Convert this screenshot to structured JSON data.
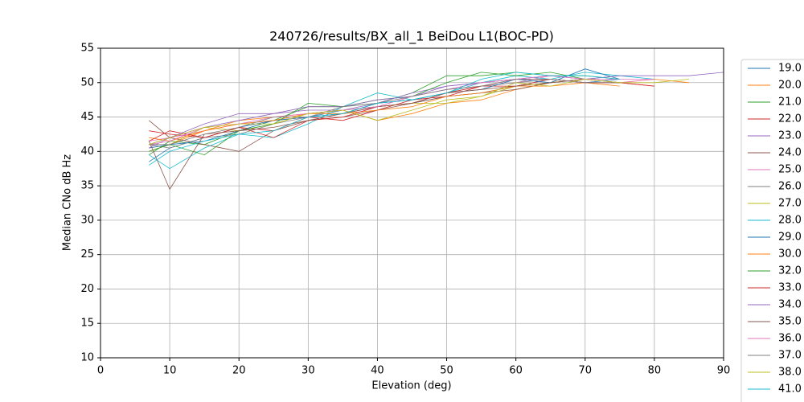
{
  "chart_data": {
    "type": "line",
    "title": "240726/results/BX_all_1 BeiDou L1(BOC-PD)",
    "xlabel": "Elevation (deg)",
    "ylabel": "Median CNo dB Hz",
    "xlim": [
      0,
      90
    ],
    "ylim": [
      10,
      55
    ],
    "xticks": [
      0,
      10,
      20,
      30,
      40,
      50,
      60,
      70,
      80,
      90
    ],
    "yticks": [
      10,
      15,
      20,
      25,
      30,
      35,
      40,
      45,
      50,
      55
    ],
    "grid": true,
    "legend": "outside right",
    "x": [
      7,
      10,
      15,
      20,
      25,
      30,
      35,
      40,
      45,
      50,
      55,
      60,
      65,
      70,
      75,
      80,
      85,
      90
    ],
    "series": [
      {
        "name": "19.0",
        "color": "#1f77b4",
        "values": [
          38.5,
          40.5,
          42.0,
          43.5,
          44.5,
          45.0,
          46.0,
          46.5,
          47.0,
          48.0,
          48.5,
          49.5,
          50.5,
          50.0,
          50.5,
          null,
          null,
          null
        ]
      },
      {
        "name": "20.0",
        "color": "#ff7f0e",
        "values": [
          40.0,
          41.0,
          43.0,
          44.5,
          45.0,
          45.5,
          46.0,
          44.5,
          45.5,
          47.0,
          47.5,
          49.0,
          50.0,
          50.5,
          50.0,
          50.5,
          50.0,
          null
        ]
      },
      {
        "name": "21.0",
        "color": "#2ca02c",
        "values": [
          39.5,
          41.5,
          41.0,
          43.0,
          44.5,
          46.5,
          46.5,
          47.0,
          48.5,
          51.0,
          51.0,
          51.5,
          51.0,
          51.0,
          50.5,
          null,
          null,
          null
        ]
      },
      {
        "name": "22.0",
        "color": "#d62728",
        "values": [
          43.0,
          42.5,
          42.0,
          43.5,
          43.0,
          45.0,
          44.5,
          46.0,
          47.5,
          48.0,
          49.5,
          49.5,
          50.5,
          50.0,
          50.0,
          49.5,
          null,
          null
        ]
      },
      {
        "name": "23.0",
        "color": "#9467bd",
        "values": [
          41.0,
          42.0,
          43.5,
          44.5,
          45.5,
          46.0,
          46.0,
          47.0,
          48.5,
          49.5,
          50.0,
          50.5,
          51.0,
          50.5,
          51.0,
          null,
          null,
          null
        ]
      },
      {
        "name": "24.0",
        "color": "#8c564b",
        "values": [
          44.5,
          42.0,
          41.0,
          40.0,
          43.0,
          44.5,
          45.0,
          46.0,
          47.0,
          48.0,
          48.5,
          49.0,
          50.0,
          50.5,
          50.0,
          null,
          null,
          null
        ]
      },
      {
        "name": "25.0",
        "color": "#e377c2",
        "values": [
          41.5,
          42.0,
          43.0,
          44.0,
          44.5,
          45.0,
          45.5,
          46.5,
          48.0,
          49.0,
          49.5,
          50.0,
          51.0,
          50.5,
          50.0,
          50.5,
          null,
          null
        ]
      },
      {
        "name": "26.0",
        "color": "#7f7f7f",
        "values": [
          41.0,
          40.5,
          42.0,
          42.5,
          44.0,
          45.0,
          45.5,
          47.0,
          47.5,
          48.5,
          49.5,
          50.0,
          50.5,
          50.0,
          null,
          null,
          null,
          null
        ]
      },
      {
        "name": "27.0",
        "color": "#bcbd22",
        "values": [
          40.0,
          41.0,
          43.5,
          43.0,
          44.0,
          45.5,
          46.0,
          46.5,
          47.0,
          47.0,
          48.0,
          49.5,
          50.0,
          50.5,
          50.0,
          null,
          null,
          null
        ]
      },
      {
        "name": "28.0",
        "color": "#17becf",
        "values": [
          39.5,
          37.5,
          40.5,
          42.5,
          42.0,
          44.0,
          46.5,
          48.5,
          47.5,
          48.5,
          50.0,
          51.0,
          50.5,
          51.5,
          51.0,
          50.5,
          null,
          null
        ]
      },
      {
        "name": "29.0",
        "color": "#1f77b4",
        "values": [
          40.5,
          41.0,
          41.5,
          43.0,
          44.5,
          45.0,
          45.5,
          47.0,
          47.5,
          48.5,
          49.0,
          50.5,
          50.0,
          52.0,
          50.5,
          null,
          null,
          null
        ]
      },
      {
        "name": "30.0",
        "color": "#ff7f0e",
        "values": [
          42.0,
          41.5,
          43.0,
          44.0,
          44.5,
          45.5,
          45.5,
          46.0,
          46.5,
          48.0,
          48.5,
          49.5,
          49.5,
          50.0,
          49.5,
          null,
          null,
          null
        ]
      },
      {
        "name": "32.0",
        "color": "#2ca02c",
        "values": [
          40.0,
          41.0,
          39.5,
          43.0,
          44.0,
          47.0,
          46.5,
          47.5,
          48.0,
          50.0,
          51.5,
          51.0,
          51.5,
          50.5,
          null,
          null,
          null,
          null
        ]
      },
      {
        "name": "33.0",
        "color": "#d62728",
        "values": [
          41.5,
          43.0,
          42.0,
          43.5,
          42.0,
          44.5,
          45.0,
          46.5,
          47.0,
          48.5,
          49.5,
          50.5,
          50.5,
          50.0,
          50.0,
          49.5,
          null,
          null
        ]
      },
      {
        "name": "34.0",
        "color": "#9467bd",
        "values": [
          40.5,
          42.0,
          44.0,
          45.5,
          45.5,
          46.5,
          46.5,
          47.5,
          48.0,
          49.5,
          50.0,
          50.5,
          51.0,
          50.5,
          51.0,
          51.0,
          51.0,
          51.5
        ]
      },
      {
        "name": "35.0",
        "color": "#8c564b",
        "values": [
          41.5,
          34.5,
          42.5,
          43.0,
          43.5,
          44.5,
          45.5,
          46.5,
          47.0,
          48.5,
          49.0,
          49.5,
          50.0,
          50.5,
          50.0,
          null,
          null,
          null
        ]
      },
      {
        "name": "36.0",
        "color": "#e377c2",
        "values": [
          41.0,
          41.5,
          43.5,
          44.0,
          45.0,
          45.5,
          46.0,
          46.5,
          48.0,
          49.0,
          50.0,
          50.5,
          51.0,
          50.5,
          50.5,
          50.5,
          null,
          null
        ]
      },
      {
        "name": "37.0",
        "color": "#7f7f7f",
        "values": [
          41.0,
          41.0,
          42.5,
          43.5,
          45.0,
          45.0,
          46.5,
          47.0,
          48.0,
          49.0,
          49.5,
          50.5,
          50.5,
          50.0,
          50.0,
          null,
          null,
          null
        ]
      },
      {
        "name": "38.0",
        "color": "#bcbd22",
        "values": [
          41.0,
          42.0,
          43.5,
          44.0,
          44.0,
          45.5,
          46.0,
          44.5,
          46.0,
          47.5,
          48.0,
          50.0,
          49.5,
          50.5,
          50.0,
          50.0,
          50.5,
          null
        ]
      },
      {
        "name": "41.0",
        "color": "#17becf",
        "values": [
          38.0,
          40.0,
          41.5,
          42.5,
          43.0,
          45.0,
          45.5,
          47.0,
          47.5,
          48.5,
          50.5,
          51.5,
          51.0,
          51.0,
          50.5,
          null,
          null,
          null
        ]
      }
    ]
  }
}
